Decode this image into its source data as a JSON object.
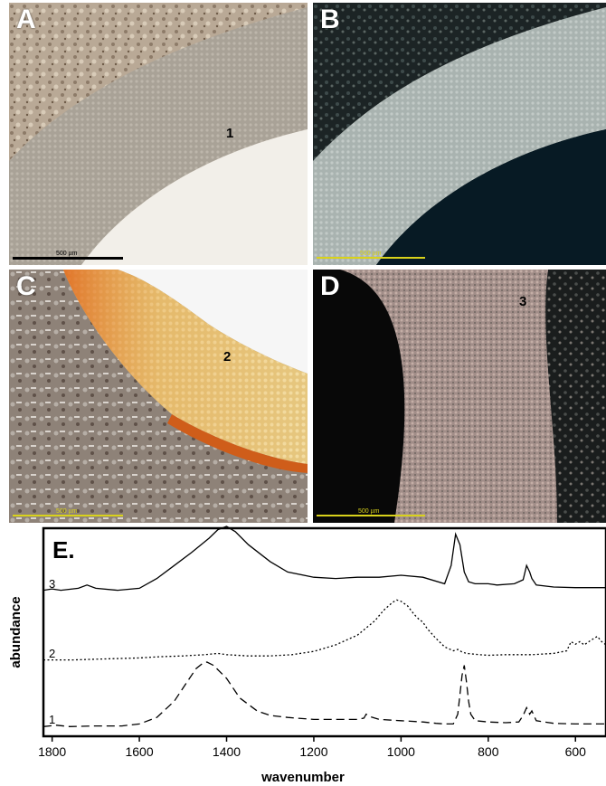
{
  "panels": [
    {
      "label": "A",
      "annotation": "1",
      "scale_text": "500 µm"
    },
    {
      "label": "B",
      "annotation": "",
      "scale_text": "500 µm"
    },
    {
      "label": "C",
      "annotation": "2",
      "scale_text": "500 µm"
    },
    {
      "label": "D",
      "annotation": "3",
      "scale_text": "500 µm"
    }
  ],
  "chart_data": {
    "type": "line",
    "panel_label": "E.",
    "xlabel": "wavenumber",
    "ylabel": "abundance",
    "xlim": [
      1820,
      530
    ],
    "x_reversed": true,
    "x_ticks": [
      1800,
      1600,
      1400,
      1200,
      1000,
      800,
      600
    ],
    "y_ticks": [],
    "series": [
      {
        "name": "3",
        "style": "solid",
        "offset": 2,
        "x": [
          1820,
          1800,
          1780,
          1740,
          1720,
          1700,
          1650,
          1600,
          1560,
          1520,
          1480,
          1440,
          1420,
          1400,
          1380,
          1350,
          1300,
          1260,
          1200,
          1150,
          1100,
          1050,
          1000,
          950,
          900,
          885,
          875,
          865,
          855,
          845,
          830,
          800,
          780,
          740,
          720,
          712,
          705,
          700,
          690,
          650,
          600,
          530
        ],
        "y": [
          0.02,
          0.04,
          0.02,
          0.05,
          0.1,
          0.05,
          0.02,
          0.05,
          0.2,
          0.4,
          0.6,
          0.82,
          0.95,
          1.0,
          0.92,
          0.72,
          0.46,
          0.3,
          0.22,
          0.2,
          0.22,
          0.22,
          0.25,
          0.22,
          0.12,
          0.4,
          0.88,
          0.72,
          0.3,
          0.15,
          0.12,
          0.12,
          0.1,
          0.12,
          0.18,
          0.4,
          0.3,
          0.2,
          0.1,
          0.07,
          0.06,
          0.06
        ]
      },
      {
        "name": "2",
        "style": "dotted",
        "offset": 1,
        "x": [
          1820,
          1750,
          1700,
          1650,
          1600,
          1550,
          1500,
          1450,
          1420,
          1400,
          1350,
          1300,
          1250,
          1200,
          1150,
          1100,
          1060,
          1040,
          1020,
          1010,
          1000,
          985,
          970,
          960,
          950,
          940,
          920,
          900,
          880,
          870,
          860,
          850,
          820,
          800,
          760,
          700,
          650,
          620,
          610,
          600,
          590,
          580,
          565,
          550,
          540,
          530
        ],
        "y": [
          0.02,
          0.02,
          0.03,
          0.04,
          0.05,
          0.07,
          0.08,
          0.1,
          0.12,
          0.1,
          0.08,
          0.08,
          0.1,
          0.15,
          0.25,
          0.4,
          0.62,
          0.78,
          0.9,
          0.94,
          0.92,
          0.85,
          0.72,
          0.65,
          0.6,
          0.5,
          0.35,
          0.22,
          0.16,
          0.18,
          0.14,
          0.12,
          0.1,
          0.09,
          0.1,
          0.1,
          0.12,
          0.16,
          0.3,
          0.26,
          0.3,
          0.25,
          0.32,
          0.38,
          0.3,
          0.25
        ]
      },
      {
        "name": "1",
        "style": "dashed",
        "offset": 0,
        "x": [
          1820,
          1790,
          1760,
          1700,
          1640,
          1600,
          1560,
          1520,
          1490,
          1470,
          1455,
          1445,
          1430,
          1400,
          1370,
          1330,
          1300,
          1260,
          1200,
          1150,
          1100,
          1085,
          1080,
          1070,
          1050,
          1000,
          950,
          920,
          900,
          880,
          870,
          860,
          855,
          850,
          845,
          840,
          830,
          800,
          760,
          730,
          720,
          712,
          705,
          700,
          690,
          650,
          600,
          530
        ],
        "y": [
          0.01,
          0.03,
          0.01,
          0.02,
          0.02,
          0.05,
          0.15,
          0.4,
          0.7,
          0.9,
          0.98,
          1.0,
          0.95,
          0.75,
          0.45,
          0.25,
          0.18,
          0.15,
          0.12,
          0.12,
          0.12,
          0.14,
          0.2,
          0.16,
          0.12,
          0.1,
          0.08,
          0.06,
          0.05,
          0.05,
          0.2,
          0.8,
          0.95,
          0.7,
          0.4,
          0.2,
          0.1,
          0.08,
          0.07,
          0.08,
          0.18,
          0.3,
          0.2,
          0.25,
          0.1,
          0.06,
          0.05,
          0.05
        ]
      }
    ]
  }
}
